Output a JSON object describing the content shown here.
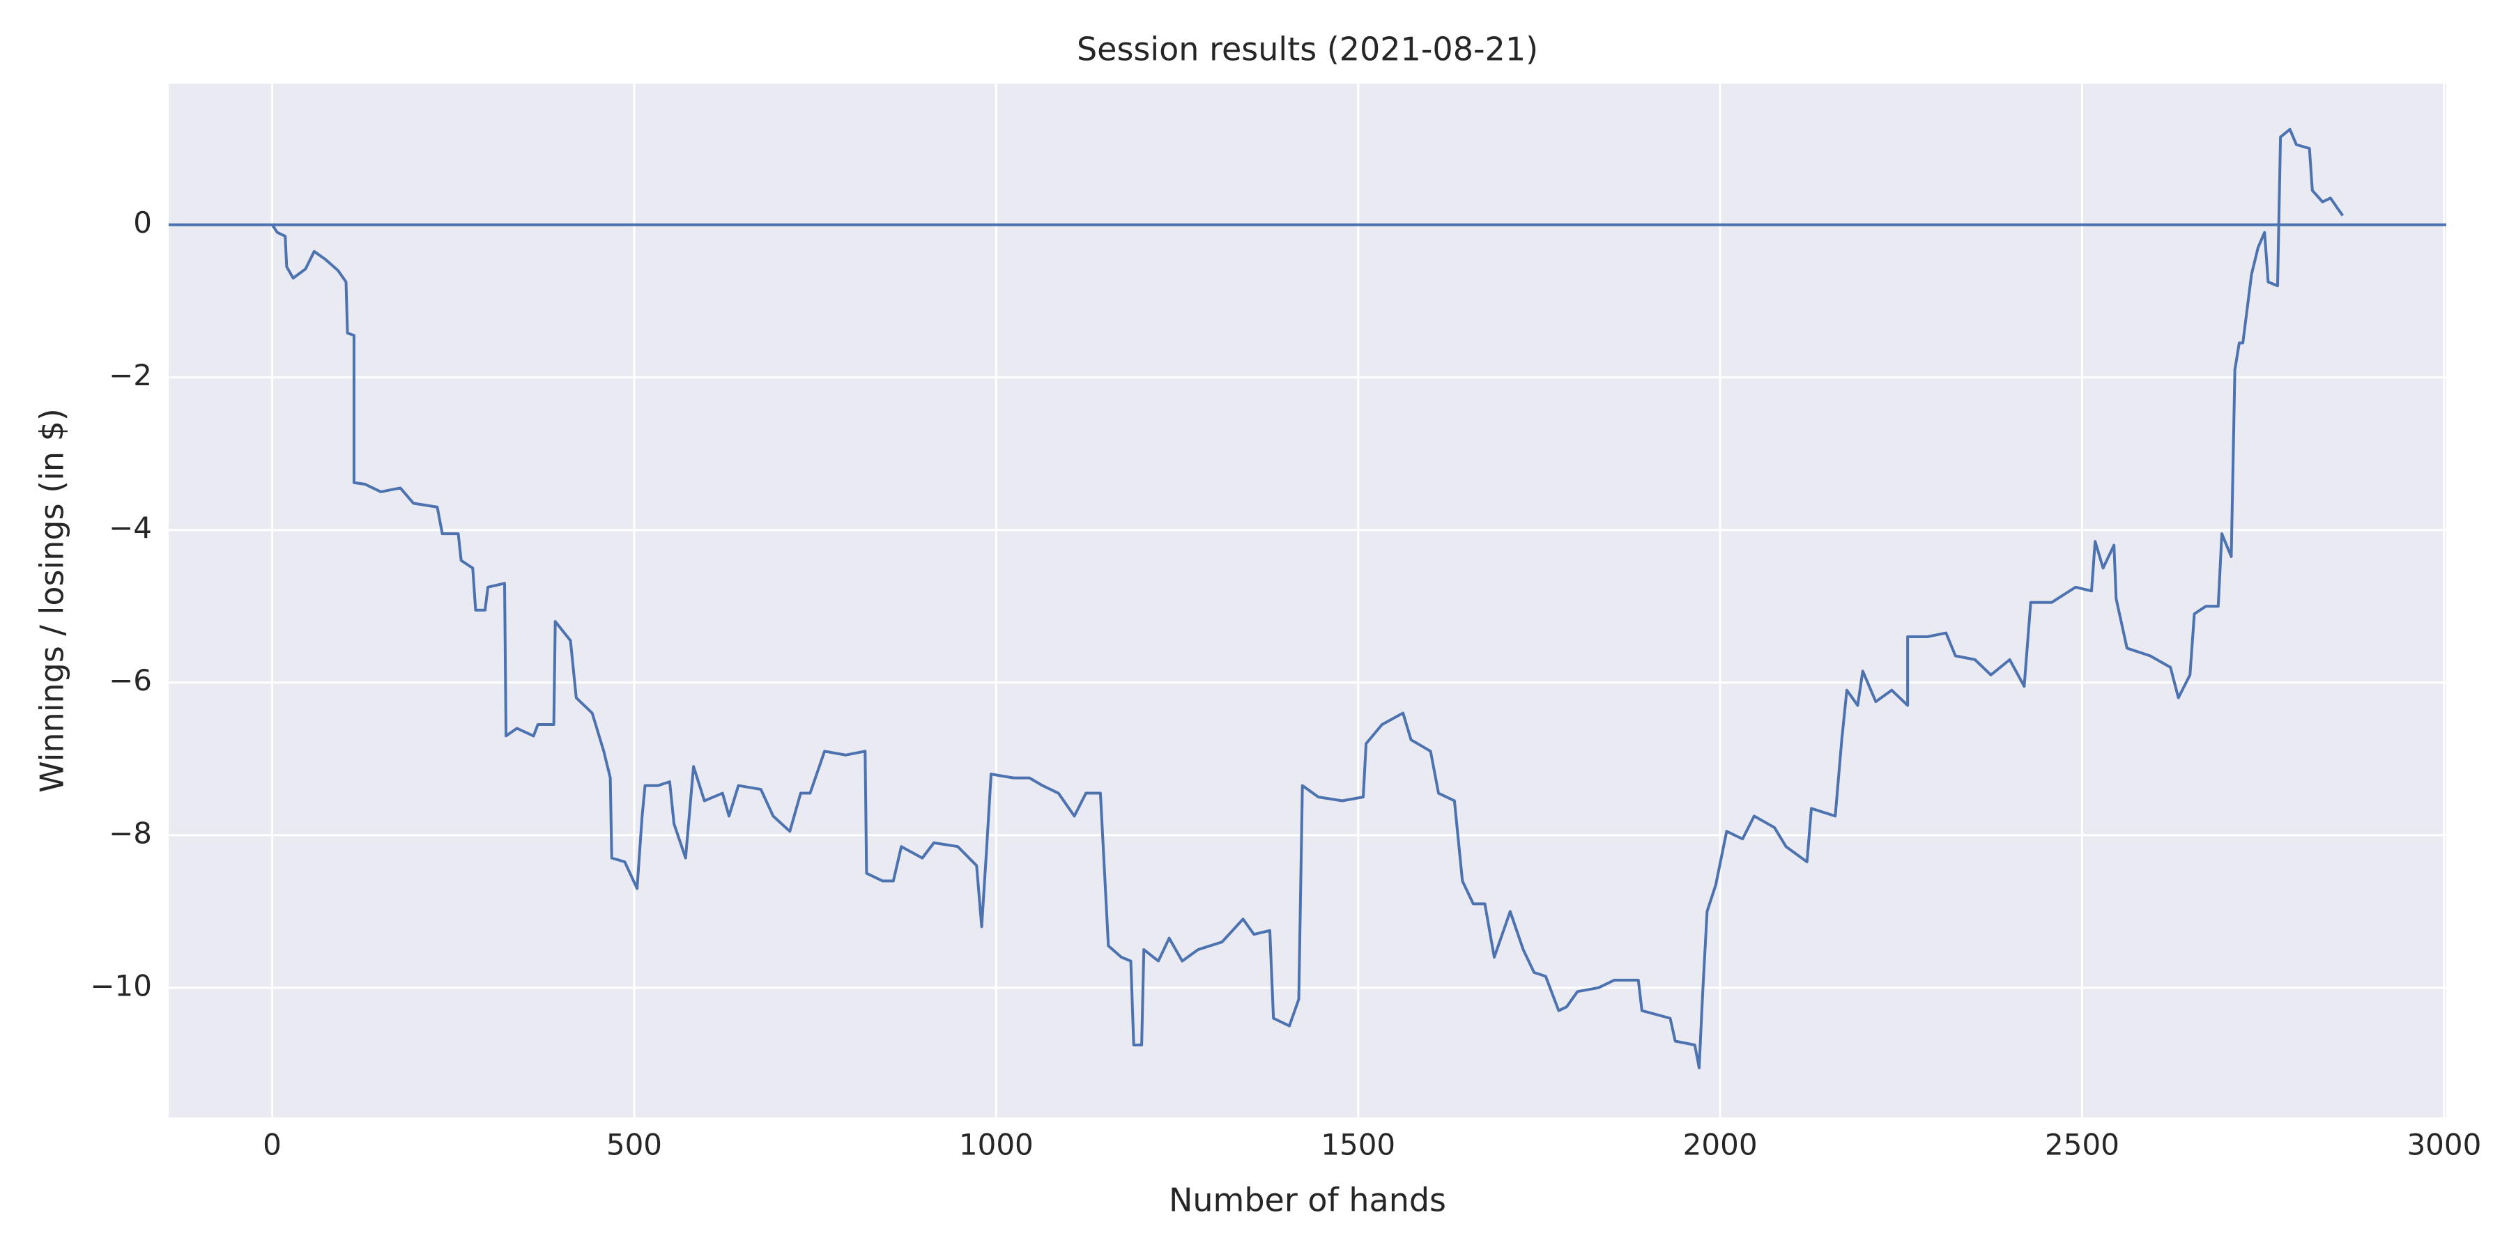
{
  "chart_data": {
    "type": "line",
    "title": "Session results (2021-08-21)",
    "xlabel": "Number of hands",
    "ylabel": "Winnings / losings (in $)",
    "x": [
      0,
      7,
      18,
      20,
      29,
      46,
      58,
      73,
      91,
      102,
      104,
      113,
      113,
      128,
      150,
      177,
      195,
      228,
      235,
      257,
      261,
      277,
      281,
      294,
      298,
      321,
      323,
      338,
      361,
      367,
      389,
      391,
      412,
      420,
      442,
      458,
      467,
      469,
      487,
      504,
      511,
      515,
      533,
      549,
      555,
      571,
      582,
      597,
      622,
      631,
      644,
      675,
      692,
      715,
      730,
      743,
      763,
      792,
      819,
      821,
      843,
      858,
      869,
      898,
      914,
      947,
      973,
      980,
      987,
      993,
      1024,
      1046,
      1064,
      1086,
      1108,
      1124,
      1144,
      1155,
      1173,
      1186,
      1190,
      1201,
      1204,
      1224,
      1239,
      1257,
      1279,
      1312,
      1341,
      1356,
      1378,
      1383,
      1405,
      1418,
      1423,
      1445,
      1478,
      1507,
      1511,
      1533,
      1562,
      1573,
      1600,
      1611,
      1633,
      1644,
      1659,
      1675,
      1688,
      1710,
      1728,
      1743,
      1759,
      1777,
      1788,
      1803,
      1832,
      1854,
      1887,
      1892,
      1931,
      1938,
      1965,
      1971,
      1976,
      1982,
      1994,
      2009,
      2031,
      2047,
      2075,
      2091,
      2120,
      2126,
      2159,
      2168,
      2175,
      2190,
      2197,
      2215,
      2237,
      2259,
      2259,
      2286,
      2312,
      2325,
      2352,
      2374,
      2400,
      2420,
      2429,
      2458,
      2491,
      2513,
      2518,
      2529,
      2544,
      2547,
      2562,
      2594,
      2622,
      2633,
      2649,
      2655,
      2671,
      2688,
      2693,
      2706,
      2711,
      2717,
      2722,
      2734,
      2743,
      2752,
      2757,
      2770,
      2774,
      2787,
      2796,
      2814,
      2818,
      2832,
      2843,
      2854,
      2860
    ],
    "values": [
      0,
      -0.1,
      -0.15,
      -0.55,
      -0.7,
      -0.58,
      -0.35,
      -0.45,
      -0.6,
      -0.75,
      -1.42,
      -1.45,
      -3.38,
      -3.4,
      -3.5,
      -3.45,
      -3.65,
      -3.7,
      -4.05,
      -4.05,
      -4.4,
      -4.5,
      -5.05,
      -5.05,
      -4.75,
      -4.7,
      -6.7,
      -6.6,
      -6.7,
      -6.55,
      -6.55,
      -5.2,
      -5.45,
      -6.2,
      -6.4,
      -6.9,
      -7.25,
      -8.3,
      -8.35,
      -8.7,
      -7.75,
      -7.35,
      -7.35,
      -7.3,
      -7.85,
      -8.3,
      -7.1,
      -7.55,
      -7.45,
      -7.75,
      -7.35,
      -7.4,
      -7.75,
      -7.95,
      -7.45,
      -7.45,
      -6.9,
      -6.95,
      -6.9,
      -8.5,
      -8.6,
      -8.6,
      -8.15,
      -8.3,
      -8.1,
      -8.15,
      -8.4,
      -9.2,
      -8.15,
      -7.2,
      -7.25,
      -7.25,
      -7.35,
      -7.45,
      -7.75,
      -7.45,
      -7.45,
      -9.45,
      -9.6,
      -9.65,
      -10.75,
      -10.75,
      -9.5,
      -9.65,
      -9.35,
      -9.65,
      -9.5,
      -9.4,
      -9.1,
      -9.3,
      -9.25,
      -10.4,
      -10.5,
      -10.15,
      -7.35,
      -7.5,
      -7.55,
      -7.5,
      -6.8,
      -6.55,
      -6.4,
      -6.75,
      -6.9,
      -7.45,
      -7.55,
      -8.6,
      -8.9,
      -8.9,
      -9.6,
      -9.0,
      -9.5,
      -9.8,
      -9.85,
      -10.3,
      -10.25,
      -10.05,
      -10.0,
      -9.9,
      -9.9,
      -10.3,
      -10.4,
      -10.7,
      -10.75,
      -11.05,
      -10.05,
      -9.0,
      -8.65,
      -7.95,
      -8.05,
      -7.75,
      -7.9,
      -8.15,
      -8.35,
      -7.65,
      -7.75,
      -6.75,
      -6.1,
      -6.3,
      -5.85,
      -6.25,
      -6.1,
      -6.3,
      -5.4,
      -5.4,
      -5.35,
      -5.65,
      -5.7,
      -5.9,
      -5.7,
      -6.05,
      -4.95,
      -4.95,
      -4.75,
      -4.8,
      -4.15,
      -4.5,
      -4.2,
      -4.9,
      -5.55,
      -5.65,
      -5.8,
      -6.2,
      -5.9,
      -5.1,
      -5.0,
      -5.0,
      -4.05,
      -4.35,
      -1.9,
      -1.55,
      -1.55,
      -0.65,
      -0.3,
      -0.1,
      -0.75,
      -0.8,
      1.15,
      1.25,
      1.05,
      1.0,
      0.45,
      0.3,
      0.35,
      0.2,
      0.12
    ],
    "color": "#4c72b0",
    "hline": 0,
    "xlim": [
      -143,
      3003
    ],
    "ylim": [
      -11.7,
      1.85
    ],
    "xticks": [
      0,
      500,
      1000,
      1500,
      2000,
      2500,
      3000
    ],
    "yticks": [
      {
        "value": -10,
        "label": "−10"
      },
      {
        "value": -8,
        "label": "−8"
      },
      {
        "value": -6,
        "label": "−6"
      },
      {
        "value": -4,
        "label": "−4"
      },
      {
        "value": -2,
        "label": "−2"
      },
      0
    ],
    "grid": true
  }
}
